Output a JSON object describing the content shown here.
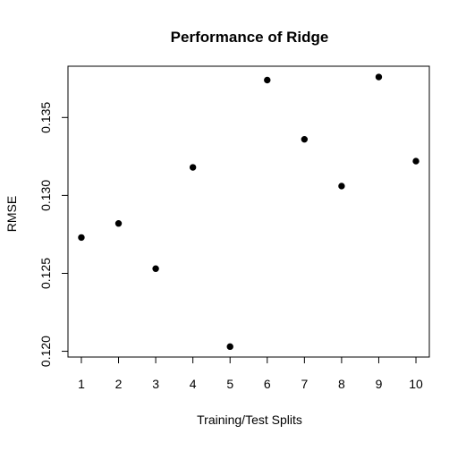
{
  "chart_data": {
    "type": "scatter",
    "title": "Performance of Ridge",
    "xlabel": "Training/Test Splits",
    "ylabel": "RMSE",
    "x": [
      1,
      2,
      3,
      4,
      5,
      6,
      7,
      8,
      9,
      10
    ],
    "y": [
      0.1273,
      0.1282,
      0.1253,
      0.1318,
      0.1203,
      0.1374,
      0.1336,
      0.1306,
      0.1376,
      0.1322
    ],
    "x_ticks": [
      "1",
      "2",
      "3",
      "4",
      "5",
      "6",
      "7",
      "8",
      "9",
      "10"
    ],
    "y_ticks": [
      "0.120",
      "0.125",
      "0.130",
      "0.135"
    ],
    "xlim": [
      0.64,
      10.36
    ],
    "ylim": [
      0.11963,
      0.13829
    ],
    "grid": false,
    "legend": "none",
    "marker_color": "#000000"
  }
}
